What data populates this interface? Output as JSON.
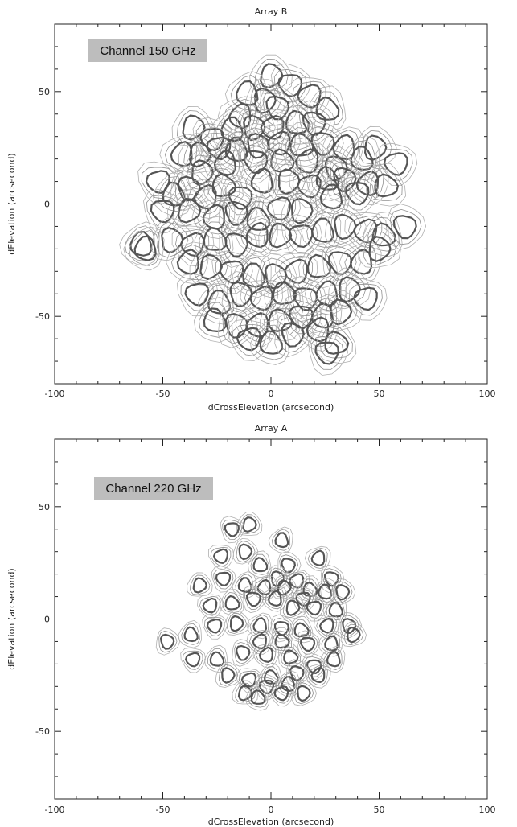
{
  "chart_data": [
    {
      "type": "scatter",
      "title": "Array B",
      "badge": "Channel 150 GHz",
      "xlabel": "dCrossElevation (arcsecond)",
      "ylabel": "dElevation (arcsecond)",
      "xlim": [
        -100,
        100
      ],
      "ylim": [
        -80,
        80
      ],
      "xticks": [
        "-100",
        "-50",
        "0",
        "50",
        "100"
      ],
      "yticks": [
        "-50",
        "0",
        "50"
      ],
      "beam_radius": 5,
      "points": [
        [
          0,
          57
        ],
        [
          9,
          53
        ],
        [
          -11,
          49
        ],
        [
          -3,
          46
        ],
        [
          18,
          48
        ],
        [
          26,
          42
        ],
        [
          3,
          43
        ],
        [
          -14,
          39
        ],
        [
          -36,
          34
        ],
        [
          -27,
          29
        ],
        [
          -18,
          33
        ],
        [
          -8,
          34
        ],
        [
          1,
          34
        ],
        [
          12,
          36
        ],
        [
          20,
          36
        ],
        [
          -41,
          22
        ],
        [
          -33,
          22
        ],
        [
          -24,
          25
        ],
        [
          -16,
          24
        ],
        [
          -6,
          26
        ],
        [
          4,
          27
        ],
        [
          14,
          26
        ],
        [
          24,
          27
        ],
        [
          34,
          25
        ],
        [
          48,
          25
        ],
        [
          58,
          18
        ],
        [
          42,
          20
        ],
        [
          30,
          16
        ],
        [
          17,
          19
        ],
        [
          5,
          19
        ],
        [
          -7,
          19
        ],
        [
          -21,
          18
        ],
        [
          -32,
          14
        ],
        [
          -52,
          10
        ],
        [
          -45,
          4
        ],
        [
          -38,
          7
        ],
        [
          -30,
          3
        ],
        [
          -22,
          8
        ],
        [
          -14,
          3
        ],
        [
          -4,
          10
        ],
        [
          8,
          10
        ],
        [
          18,
          8
        ],
        [
          26,
          11
        ],
        [
          34,
          11
        ],
        [
          45,
          9
        ],
        [
          53,
          8
        ],
        [
          40,
          5
        ],
        [
          28,
          3
        ],
        [
          14,
          -3
        ],
        [
          4,
          -2
        ],
        [
          -6,
          -7
        ],
        [
          -16,
          -4
        ],
        [
          -26,
          -6
        ],
        [
          -38,
          -3
        ],
        [
          -50,
          -3
        ],
        [
          -60,
          -18
        ],
        [
          -46,
          -16
        ],
        [
          -36,
          -18
        ],
        [
          -26,
          -16
        ],
        [
          -16,
          -18
        ],
        [
          -6,
          -14
        ],
        [
          4,
          -14
        ],
        [
          14,
          -14
        ],
        [
          24,
          -12
        ],
        [
          34,
          -10
        ],
        [
          44,
          -12
        ],
        [
          52,
          -14
        ],
        [
          62,
          -10
        ],
        [
          -38,
          -26
        ],
        [
          -28,
          -28
        ],
        [
          -18,
          -30
        ],
        [
          -8,
          -32
        ],
        [
          2,
          -32
        ],
        [
          12,
          -30
        ],
        [
          22,
          -28
        ],
        [
          32,
          -26
        ],
        [
          42,
          -26
        ],
        [
          50,
          -20
        ],
        [
          -34,
          -40
        ],
        [
          -24,
          -44
        ],
        [
          -14,
          -40
        ],
        [
          -4,
          -42
        ],
        [
          6,
          -40
        ],
        [
          16,
          -42
        ],
        [
          26,
          -40
        ],
        [
          36,
          -38
        ],
        [
          44,
          -42
        ],
        [
          -26,
          -52
        ],
        [
          -16,
          -54
        ],
        [
          -6,
          -54
        ],
        [
          4,
          -52
        ],
        [
          14,
          -50
        ],
        [
          24,
          -50
        ],
        [
          32,
          -48
        ],
        [
          -10,
          -60
        ],
        [
          0,
          -62
        ],
        [
          10,
          -58
        ],
        [
          22,
          -56
        ],
        [
          30,
          -62
        ],
        [
          26,
          -66
        ],
        [
          -58,
          -20
        ]
      ]
    },
    {
      "type": "scatter",
      "title": "Array A",
      "badge": "Channel 220 GHz",
      "xlabel": "dCrossElevation (arcsecond)",
      "ylabel": "dElevation (arcsecond)",
      "xlim": [
        -100,
        100
      ],
      "ylim": [
        -80,
        80
      ],
      "xticks": [
        "-100",
        "-50",
        "0",
        "50",
        "100"
      ],
      "yticks": [
        "-50",
        "0",
        "50"
      ],
      "beam_radius": 3,
      "points": [
        [
          -10,
          42
        ],
        [
          -18,
          40
        ],
        [
          5,
          35
        ],
        [
          -12,
          30
        ],
        [
          -23,
          28
        ],
        [
          -5,
          24
        ],
        [
          8,
          24
        ],
        [
          22,
          27
        ],
        [
          -33,
          15
        ],
        [
          -22,
          18
        ],
        [
          -12,
          15
        ],
        [
          3,
          18
        ],
        [
          12,
          17
        ],
        [
          18,
          13
        ],
        [
          28,
          18
        ],
        [
          -3,
          14
        ],
        [
          6,
          14
        ],
        [
          15,
          9
        ],
        [
          25,
          12
        ],
        [
          33,
          12
        ],
        [
          -28,
          6
        ],
        [
          -18,
          7
        ],
        [
          -8,
          9
        ],
        [
          2,
          9
        ],
        [
          10,
          5
        ],
        [
          20,
          5
        ],
        [
          30,
          4
        ],
        [
          36,
          -3
        ],
        [
          26,
          -3
        ],
        [
          14,
          -5
        ],
        [
          5,
          -4
        ],
        [
          -5,
          -3
        ],
        [
          -16,
          -2
        ],
        [
          -26,
          -3
        ],
        [
          -37,
          -7
        ],
        [
          -48,
          -10
        ],
        [
          -5,
          -10
        ],
        [
          5,
          -10
        ],
        [
          17,
          -11
        ],
        [
          28,
          -11
        ],
        [
          38,
          -7
        ],
        [
          -36,
          -18
        ],
        [
          -25,
          -18
        ],
        [
          -13,
          -15
        ],
        [
          -2,
          -16
        ],
        [
          9,
          -17
        ],
        [
          20,
          -21
        ],
        [
          29,
          -18
        ],
        [
          -20,
          -25
        ],
        [
          -10,
          -27
        ],
        [
          0,
          -26
        ],
        [
          12,
          -24
        ],
        [
          22,
          -25
        ],
        [
          -12,
          -33
        ],
        [
          -2,
          -30
        ],
        [
          8,
          -29
        ],
        [
          15,
          -33
        ],
        [
          5,
          -33
        ],
        [
          -6,
          -35
        ]
      ]
    }
  ]
}
